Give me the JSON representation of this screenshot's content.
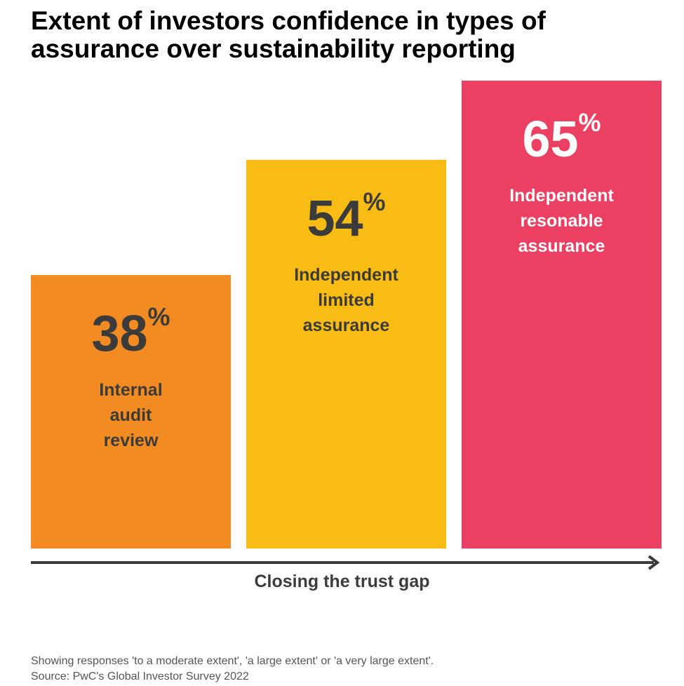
{
  "title_line1": "Extent of investors confidence in types of",
  "title_line2": "assurance over sustainability reporting",
  "axis_label": "Closing the trust gap",
  "footnote": {
    "note": "Showing responses 'to a moderate extent', 'a large extent' or 'a very large extent'.",
    "source": "Source: PwC's Global Investor Survey 2022"
  },
  "chart_data": {
    "type": "bar",
    "title": "Extent of investors confidence in types of assurance over sustainability reporting",
    "xlabel": "Closing the trust gap",
    "ylabel": "",
    "unit": "%",
    "ylim": [
      0,
      65
    ],
    "categories": [
      [
        "Internal",
        "audit",
        "review"
      ],
      [
        "Independent",
        "limited",
        "assurance"
      ],
      [
        "Independent",
        "resonable",
        "assurance"
      ]
    ],
    "values": [
      38,
      54,
      65
    ],
    "colors": [
      "#F28C22",
      "#F9BC15",
      "#EC4063"
    ],
    "text_colors": [
      "#3b3b3b",
      "#3b3b3b",
      "#ffffff"
    ]
  }
}
